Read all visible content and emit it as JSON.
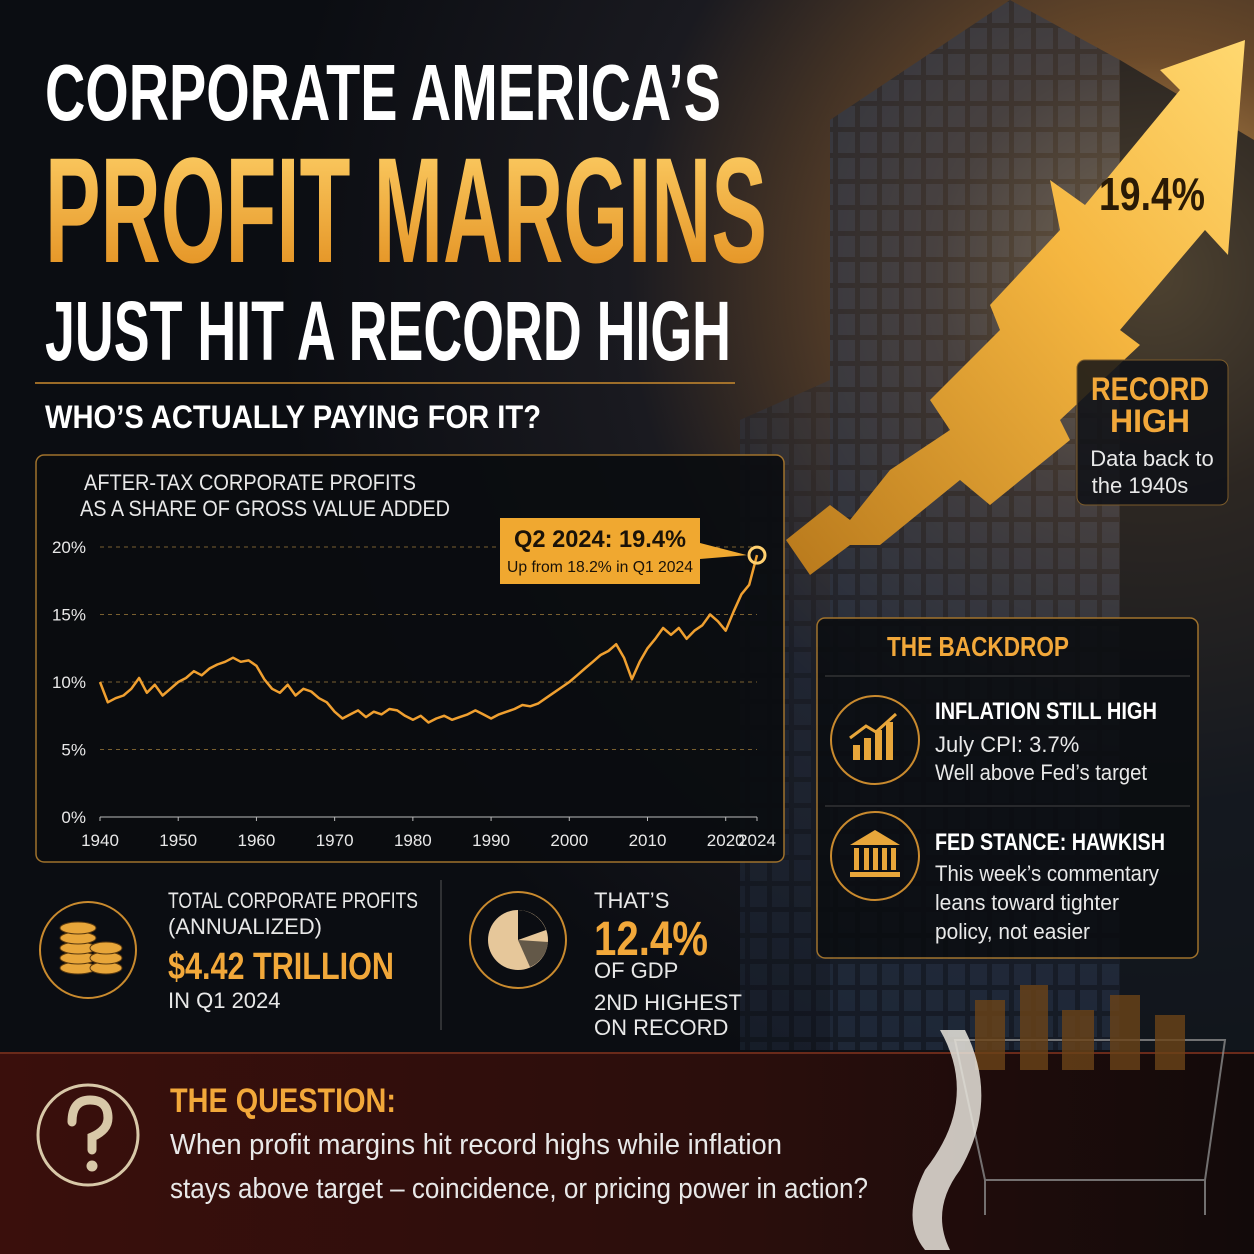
{
  "header": {
    "line1": "CORPORATE AMERICA’S",
    "line2": "PROFIT MARGINS",
    "line3": "JUST HIT A RECORD HIGH",
    "question": "WHO’S ACTUALLY PAYING FOR IT?"
  },
  "arrow_label": "19.4%",
  "record_badge": {
    "title_lines": [
      "RECORD",
      "HIGH"
    ],
    "note_lines": [
      "Data back to",
      "the 1940s"
    ]
  },
  "chart_data": {
    "type": "line",
    "title": "AFTER-TAX CORPORATE PROFITS",
    "subtitle": "AS A SHARE OF GROSS VALUE ADDED",
    "annotation": {
      "title": "Q2 2024: 19.4%",
      "note": "Up from 18.2% in Q1 2024"
    },
    "x": [
      1940,
      1941,
      1942,
      1943,
      1944,
      1945,
      1946,
      1947,
      1948,
      1949,
      1950,
      1951,
      1952,
      1953,
      1954,
      1955,
      1956,
      1957,
      1958,
      1959,
      1960,
      1961,
      1962,
      1963,
      1964,
      1965,
      1966,
      1967,
      1968,
      1969,
      1970,
      1971,
      1972,
      1973,
      1974,
      1975,
      1976,
      1977,
      1978,
      1979,
      1980,
      1981,
      1982,
      1983,
      1984,
      1985,
      1986,
      1987,
      1988,
      1989,
      1990,
      1991,
      1992,
      1993,
      1994,
      1995,
      1996,
      1997,
      1998,
      1999,
      2000,
      2001,
      2002,
      2003,
      2004,
      2005,
      2006,
      2007,
      2008,
      2009,
      2010,
      2011,
      2012,
      2013,
      2014,
      2015,
      2016,
      2017,
      2018,
      2019,
      2020,
      2021,
      2022,
      2023,
      2024
    ],
    "values": [
      10,
      8.5,
      8.8,
      9,
      9.5,
      10.3,
      9.2,
      9.8,
      9,
      9.5,
      10,
      10.3,
      10.8,
      10.5,
      11,
      11.3,
      11.5,
      11.8,
      11.5,
      11.6,
      11.2,
      10.2,
      9.5,
      9.2,
      9.8,
      9,
      9.5,
      9.3,
      8.8,
      8.5,
      7.8,
      7.3,
      7.6,
      7.9,
      7.4,
      7.8,
      7.6,
      8,
      7.9,
      7.5,
      7.2,
      7.5,
      7,
      7.3,
      7.5,
      7.2,
      7.4,
      7.6,
      7.9,
      7.6,
      7.3,
      7.6,
      7.8,
      8,
      8.3,
      8.2,
      8.4,
      8.8,
      9.2,
      9.6,
      10,
      10.5,
      11,
      11.5,
      12,
      12.3,
      12.8,
      11.8,
      10.2,
      11.5,
      12.5,
      13.2,
      14,
      13.5,
      14,
      13.2,
      13.8,
      14.2,
      15,
      14.5,
      13.8,
      15.2,
      16.5,
      17.2,
      19.4
    ],
    "color": "#f0a030",
    "xlim": [
      1940,
      2024
    ],
    "xticks": [
      1940,
      1950,
      1960,
      1970,
      1980,
      1990,
      2000,
      2010,
      2020,
      2024
    ],
    "ylim": [
      0,
      20
    ],
    "yticks": [
      {
        "value": 0,
        "label": "0%"
      },
      {
        "value": 5,
        "label": "5%"
      },
      {
        "value": 10,
        "label": "10%"
      },
      {
        "value": 15,
        "label": "15%"
      },
      {
        "value": 20,
        "label": "20%"
      }
    ],
    "grid": true
  },
  "stats": [
    {
      "lines": [
        "TOTAL CORPORATE PROFITS",
        "(ANNUALIZED)"
      ],
      "value": "$4.42 TRILLION",
      "note_lines": [
        "IN Q1 2024"
      ]
    },
    {
      "lines": [
        "THAT’S"
      ],
      "value": "12.4%",
      "note_lines": [
        "OF GDP",
        "2ND HIGHEST",
        "ON RECORD"
      ]
    }
  ],
  "backdrop": {
    "title": "THE BACKDROP",
    "items": [
      {
        "heading": "INFLATION STILL HIGH",
        "lines": [
          "July CPI: 3.7%",
          "Well above Fed’s target"
        ]
      },
      {
        "heading": "FED STANCE: HAWKISH",
        "lines": [
          "This week’s commentary",
          "leans toward tighter",
          "policy, not easier"
        ]
      }
    ]
  },
  "question": {
    "title": "THE QUESTION:",
    "lines": [
      "When profit margins hit record highs while inflation",
      "stays above target – coincidence, or pricing power in action?"
    ]
  }
}
